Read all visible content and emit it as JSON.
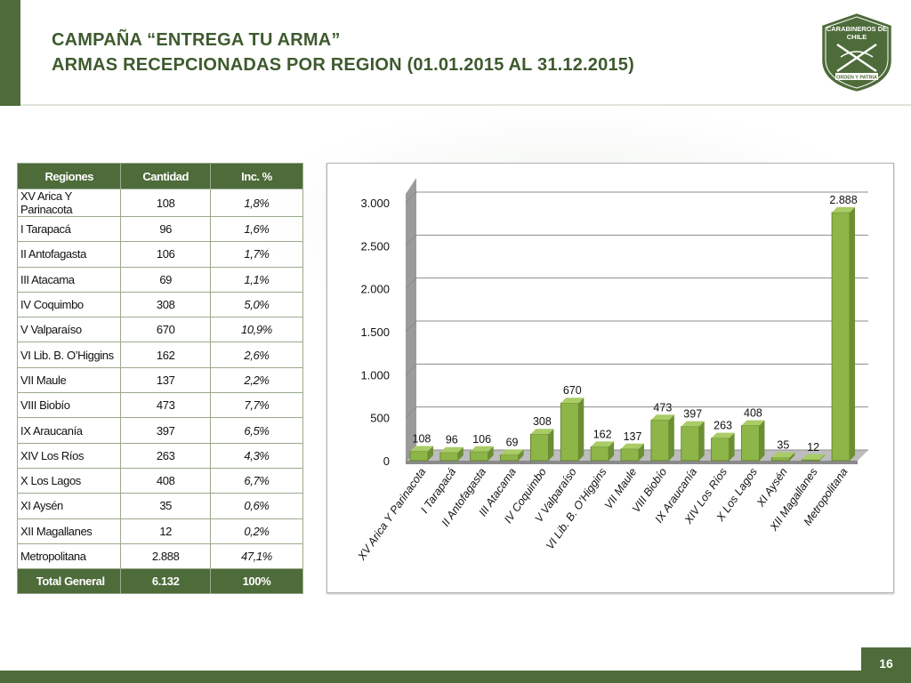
{
  "header": {
    "title_line1": "CAMPAÑA “ENTREGA TU ARMA”",
    "title_line2": "ARMAS RECEPCIONADAS POR REGION (01.01.2015 AL 31.12.2015)"
  },
  "logo": {
    "top_text_1": "CARABINEROS DE",
    "top_text_2": "CHILE",
    "bottom_text": "ORDEN Y PATRIA"
  },
  "table": {
    "headers": [
      "Regiones",
      "Cantidad",
      "Inc. %"
    ],
    "rows": [
      [
        "XV Arica Y Parinacota",
        "108",
        "1,8%"
      ],
      [
        "I Tarapacá",
        "96",
        "1,6%"
      ],
      [
        "II Antofagasta",
        "106",
        "1,7%"
      ],
      [
        "III Atacama",
        "69",
        "1,1%"
      ],
      [
        "IV Coquimbo",
        "308",
        "5,0%"
      ],
      [
        "V Valparaíso",
        "670",
        "10,9%"
      ],
      [
        "VI Lib. B. O’Higgins",
        "162",
        "2,6%"
      ],
      [
        "VII Maule",
        "137",
        "2,2%"
      ],
      [
        "VIII Biobío",
        "473",
        "7,7%"
      ],
      [
        "IX Araucanía",
        "397",
        "6,5%"
      ],
      [
        "XIV Los Ríos",
        "263",
        "4,3%"
      ],
      [
        "X Los Lagos",
        "408",
        "6,7%"
      ],
      [
        "XI Aysén",
        "35",
        "0,6%"
      ],
      [
        "XII Magallanes",
        "12",
        "0,2%"
      ],
      [
        "Metropolitana",
        "2.888",
        "47,1%"
      ]
    ],
    "total": [
      "Total General",
      "6.132",
      "100%"
    ]
  },
  "chart_data": {
    "type": "bar",
    "categories": [
      "XV Arica Y Parinacota",
      "I Tarapacá",
      "II Antofagasta",
      "III Atacama",
      "IV Coquimbo",
      "V Valparaíso",
      "VI Lib. B. O’Higgins",
      "VII Maule",
      "VIII Biobío",
      "IX Araucanía",
      "XIV Los Ríos",
      "X Los Lagos",
      "XI Aysén",
      "XII Magallanes",
      "Metropolitana"
    ],
    "values": [
      108,
      96,
      106,
      69,
      308,
      670,
      162,
      137,
      473,
      397,
      263,
      408,
      35,
      12,
      2888
    ],
    "value_labels": [
      "108",
      "96",
      "106",
      "69",
      "308",
      "670",
      "162",
      "137",
      "473",
      "397",
      "263",
      "408",
      "35",
      "12",
      "2.888"
    ],
    "yticks": [
      0,
      500,
      1000,
      1500,
      2000,
      2500,
      3000
    ],
    "ytick_labels": [
      "0",
      "500",
      "1.000",
      "1.500",
      "2.000",
      "2.500",
      "3.000"
    ],
    "ylim": [
      0,
      3000
    ],
    "grid": true,
    "bar_color": "#8db547",
    "title": "",
    "xlabel": "",
    "ylabel": ""
  },
  "colors": {
    "brand_green": "#4e6b3a",
    "bar_green": "#8db547"
  },
  "footer": {
    "page_number": "16"
  }
}
